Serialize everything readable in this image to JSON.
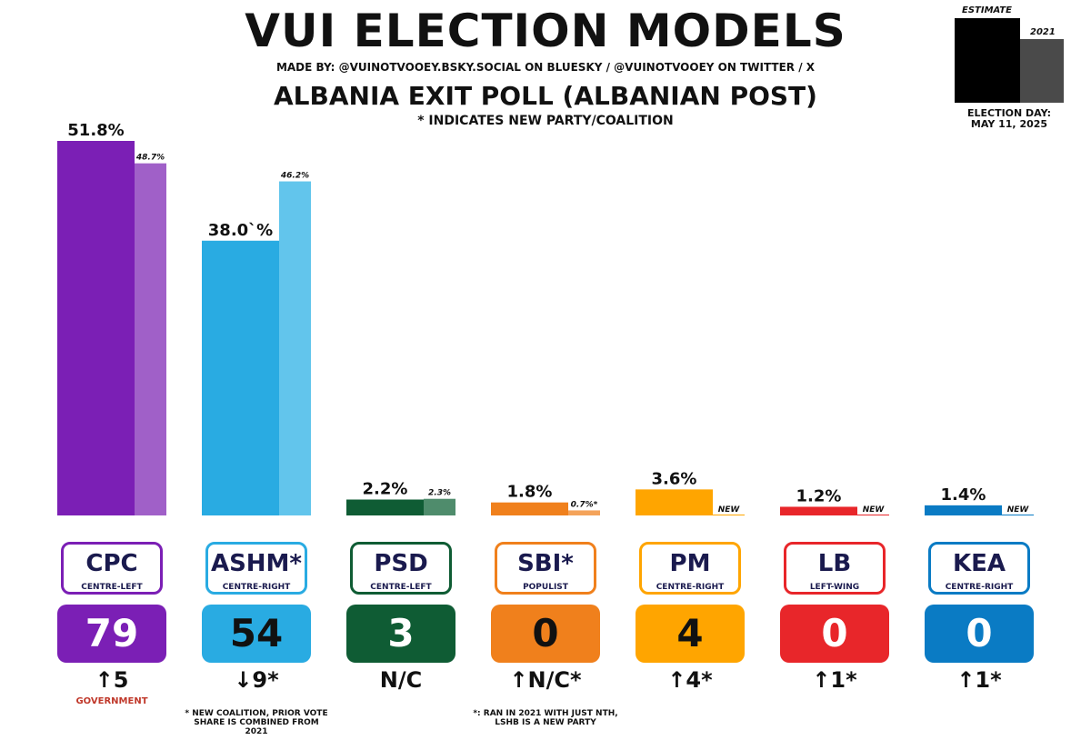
{
  "header": {
    "title": "VUI ELECTION MODELS",
    "made_by": "MADE BY: @VUINOTVOOEY.BSKY.SOCIAL ON BLUESKY / @VUINOTVOOEY ON TWITTER / X",
    "subtitle": "ALBANIA EXIT POLL (ALBANIAN POST)",
    "note": "* INDICATES NEW PARTY/COALITION"
  },
  "legend": {
    "estimate_label": "ESTIMATE",
    "prev_label": "2021",
    "election_day_label": "ELECTION DAY:",
    "election_date": "MAY 11, 2025",
    "estimate_color": "#000000",
    "prev_color": "#4a4a4a"
  },
  "chart_data": {
    "type": "bar",
    "title": "ALBANIA EXIT POLL (ALBANIAN POST)",
    "categories": [
      "CPC",
      "ASHM*",
      "PSD",
      "SBI*",
      "PM",
      "LB",
      "KEA"
    ],
    "series": [
      {
        "name": "ESTIMATE",
        "values": [
          51.8,
          38.0,
          2.2,
          1.8,
          3.6,
          1.2,
          1.4
        ]
      },
      {
        "name": "2021",
        "values": [
          48.7,
          46.2,
          2.3,
          0.7,
          null,
          null,
          null
        ]
      }
    ],
    "ylim": [
      0,
      51.8
    ]
  },
  "parties": [
    {
      "name": "CPC",
      "ideology": "CENTRE-LEFT",
      "estimate_label": "51.8%",
      "prev_label": "48.7%",
      "seats": "79",
      "change": "↑5",
      "color": "#7b1fb5",
      "prev_color": "#a060c8",
      "text_color": "#ffffff",
      "footnote": "GOVERNMENT",
      "footnote_color": "#c0392b"
    },
    {
      "name": "ASHM*",
      "ideology": "CENTRE-RIGHT",
      "estimate_label": "38.0`%",
      "prev_label": "46.2%",
      "seats": "54",
      "change": "↓9*",
      "color": "#29abe2",
      "prev_color": "#62c5ec",
      "text_color": "#111111",
      "footnote": "* NEW COALITION, PRIOR VOTE SHARE IS COMBINED FROM 2021",
      "footnote_color": "#111111"
    },
    {
      "name": "PSD",
      "ideology": "CENTRE-LEFT",
      "estimate_label": "2.2%",
      "prev_label": "2.3%",
      "seats": "3",
      "change": "N/C",
      "color": "#0f5c34",
      "prev_color": "#4f8c6c",
      "text_color": "#ffffff",
      "footnote": "",
      "footnote_color": "#111111"
    },
    {
      "name": "SBI*",
      "ideology": "POPULIST",
      "estimate_label": "1.8%",
      "prev_label": "0.7%*",
      "seats": "0",
      "change": "↑N/C*",
      "color": "#f0801c",
      "prev_color": "#f4a35a",
      "text_color": "#111111",
      "footnote": "*: RAN IN 2021 WITH JUST NTH, LSHB IS A NEW PARTY",
      "footnote_color": "#111111"
    },
    {
      "name": "PM",
      "ideology": "CENTRE-RIGHT",
      "estimate_label": "3.6%",
      "prev_label": "NEW",
      "seats": "4",
      "change": "↑4*",
      "color": "#ffa500",
      "prev_color": "#ffa500",
      "text_color": "#111111",
      "footnote": "",
      "footnote_color": "#111111"
    },
    {
      "name": "LB",
      "ideology": "LEFT-WING",
      "estimate_label": "1.2%",
      "prev_label": "NEW",
      "seats": "0",
      "change": "↑1*",
      "color": "#e8262a",
      "prev_color": "#e8262a",
      "text_color": "#ffffff",
      "footnote": "",
      "footnote_color": "#111111"
    },
    {
      "name": "KEA",
      "ideology": "CENTRE-RIGHT",
      "estimate_label": "1.4%",
      "prev_label": "NEW",
      "seats": "0",
      "change": "↑1*",
      "color": "#0a7bc4",
      "prev_color": "#0a7bc4",
      "text_color": "#ffffff",
      "footnote": "",
      "footnote_color": "#111111"
    }
  ]
}
